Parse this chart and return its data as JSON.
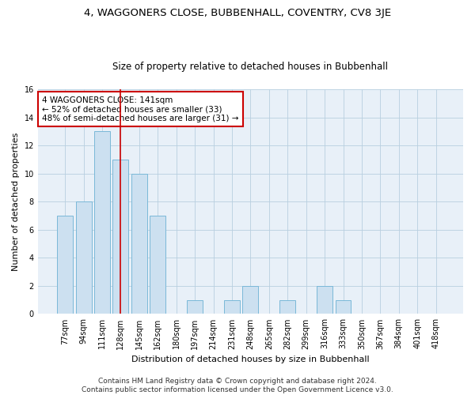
{
  "title": "4, WAGGONERS CLOSE, BUBBENHALL, COVENTRY, CV8 3JE",
  "subtitle": "Size of property relative to detached houses in Bubbenhall",
  "xlabel": "Distribution of detached houses by size in Bubbenhall",
  "ylabel": "Number of detached properties",
  "categories": [
    "77sqm",
    "94sqm",
    "111sqm",
    "128sqm",
    "145sqm",
    "162sqm",
    "180sqm",
    "197sqm",
    "214sqm",
    "231sqm",
    "248sqm",
    "265sqm",
    "282sqm",
    "299sqm",
    "316sqm",
    "333sqm",
    "350sqm",
    "367sqm",
    "384sqm",
    "401sqm",
    "418sqm"
  ],
  "values": [
    7,
    8,
    13,
    11,
    10,
    7,
    0,
    1,
    0,
    1,
    2,
    0,
    1,
    0,
    2,
    1,
    0,
    0,
    0,
    0,
    0
  ],
  "bar_color": "#cce0f0",
  "bar_edge_color": "#7ab8d8",
  "red_line_index": 3.5,
  "annotation_text": "4 WAGGONERS CLOSE: 141sqm\n← 52% of detached houses are smaller (33)\n48% of semi-detached houses are larger (31) →",
  "annotation_box_facecolor": "#ffffff",
  "annotation_box_edgecolor": "#cc0000",
  "ylim": [
    0,
    16
  ],
  "yticks": [
    0,
    2,
    4,
    6,
    8,
    10,
    12,
    14,
    16
  ],
  "grid_color": "#b8cfe0",
  "background_color": "#e8f0f8",
  "footer1": "Contains HM Land Registry data © Crown copyright and database right 2024.",
  "footer2": "Contains public sector information licensed under the Open Government Licence v3.0.",
  "title_fontsize": 9.5,
  "subtitle_fontsize": 8.5,
  "xlabel_fontsize": 8,
  "ylabel_fontsize": 8,
  "tick_fontsize": 7,
  "annotation_fontsize": 7.5,
  "footer_fontsize": 6.5
}
